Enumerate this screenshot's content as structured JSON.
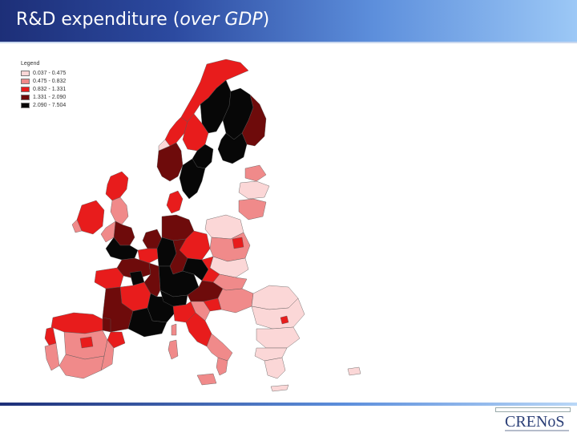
{
  "slide": {
    "title_plain": "R&D expenditure (",
    "title_italic": "over GDP",
    "title_close": ")"
  },
  "legend": {
    "title": "Legend",
    "classes": [
      {
        "label": "0.037 - 0.475",
        "color": "#fbd7d7"
      },
      {
        "label": "0.475 - 0.832",
        "color": "#f08a8a"
      },
      {
        "label": "0.832 - 1.331",
        "color": "#e81c1c"
      },
      {
        "label": "1.331 - 2.090",
        "color": "#6e0b0b"
      },
      {
        "label": "2.090 - 7.504",
        "color": "#070707"
      }
    ]
  },
  "logo": {
    "name": "CRENoS"
  }
}
